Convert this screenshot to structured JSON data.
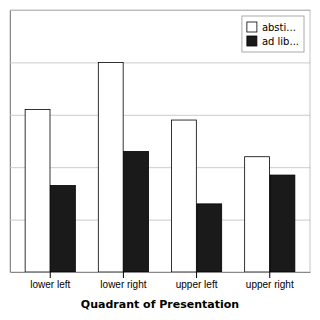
{
  "chart_data": {
    "type": "bar",
    "xlabel": "Quadrant of Presentation",
    "categories": [
      "lower left",
      "lower right",
      "upper left",
      "upper right"
    ],
    "series": [
      {
        "name": "absti...",
        "color": "#ffffff",
        "values": [
          62,
          80,
          58,
          44
        ]
      },
      {
        "name": "ad lib...",
        "color": "#1a1a1a",
        "values": [
          33,
          46,
          26,
          37
        ]
      }
    ],
    "ylim": [
      0,
      100
    ],
    "yticks": [
      0,
      20,
      40,
      60,
      80,
      100
    ],
    "grid": true,
    "legend": "upper right",
    "tick_labels": "x"
  }
}
